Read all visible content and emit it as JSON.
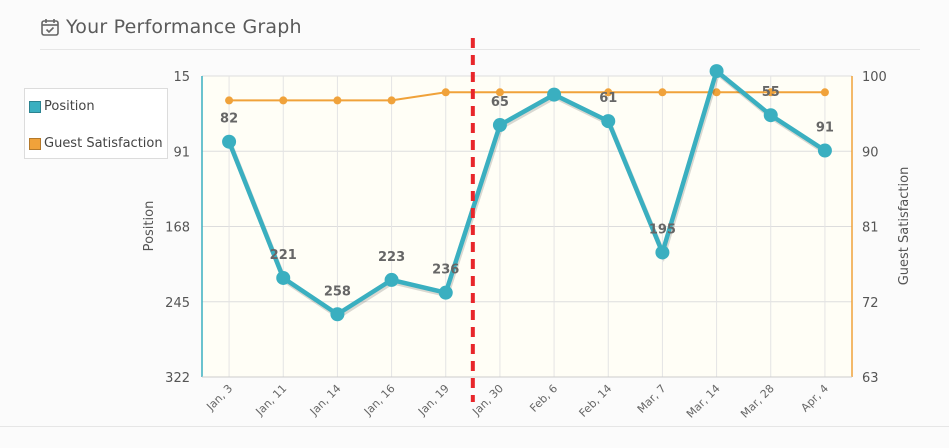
{
  "header": {
    "title": "Your Performance Graph",
    "icon": "calendar-check-icon"
  },
  "legend": [
    {
      "name": "Position",
      "color": "#3aafc0"
    },
    {
      "name": "Guest Satisfaction",
      "color": "#f0a23a"
    }
  ],
  "chart_data": {
    "type": "line",
    "categories": [
      "Jan, 3",
      "Jan, 11",
      "Jan, 14",
      "Jan, 16",
      "Jan, 19",
      "Jan, 30",
      "Feb, 6",
      "Feb, 14",
      "Mar, 7",
      "Mar, 14",
      "Mar, 28",
      "Apr, 4"
    ],
    "series": [
      {
        "name": "Position",
        "axis": "left",
        "color": "#3aafc0",
        "values": [
          82,
          221,
          258,
          223,
          236,
          65,
          34,
          61,
          195,
          10,
          55,
          91
        ],
        "labels": [
          "82",
          "221",
          "258",
          "223",
          "236",
          "65",
          "",
          "61",
          "195",
          "",
          "55",
          "91"
        ]
      },
      {
        "name": "Guest Satisfaction",
        "axis": "right",
        "color": "#f0a23a",
        "values": [
          97,
          97,
          97,
          97,
          98,
          98,
          98,
          98,
          98,
          98,
          98,
          98
        ]
      }
    ],
    "y_left": {
      "label": "Position",
      "ticks": [
        "15",
        "91",
        "168",
        "245",
        "322"
      ],
      "range": [
        15,
        322
      ],
      "reversed": true
    },
    "y_right": {
      "label": "Guest Satisfaction",
      "ticks": [
        "100",
        "90",
        "81",
        "72",
        "63"
      ],
      "range": [
        63,
        100
      ]
    },
    "marker_after_category": "Jan, 19",
    "marker_color": "#e8262b",
    "grid": true
  }
}
